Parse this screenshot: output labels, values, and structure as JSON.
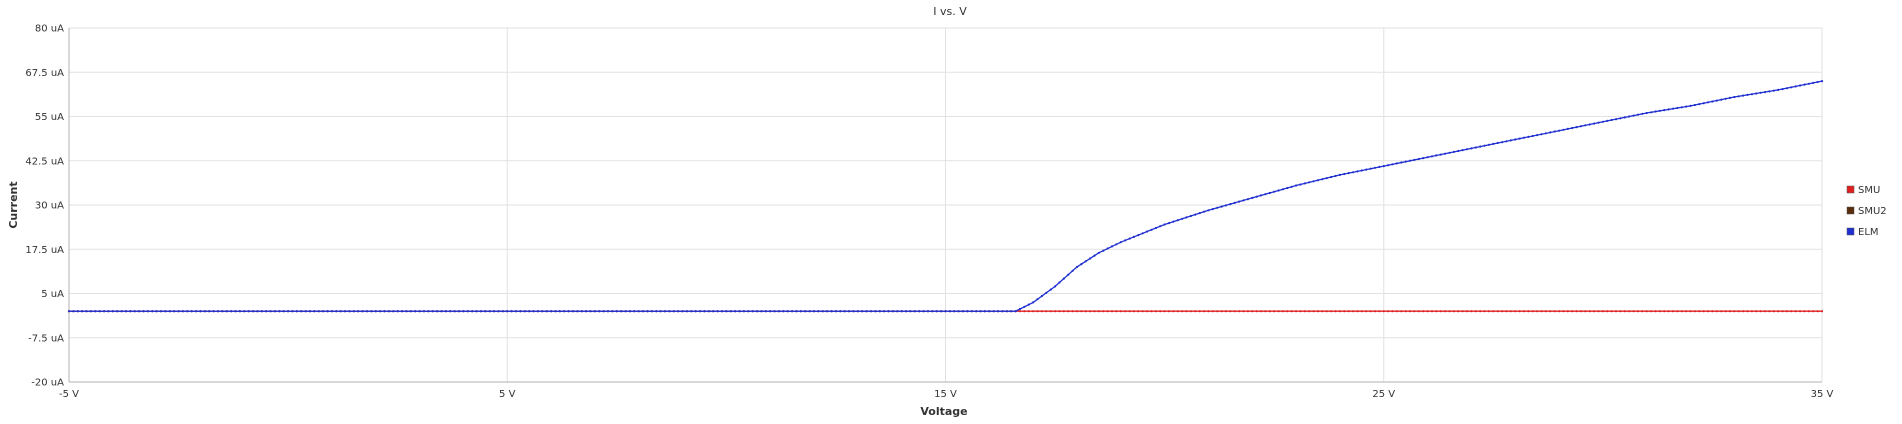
{
  "chart_data": {
    "type": "line",
    "title": "I vs. V",
    "xlabel": "Voltage",
    "ylabel": "Current",
    "xlim": [
      -5,
      35
    ],
    "ylim": [
      -20,
      80
    ],
    "x_ticks": [
      -5,
      5,
      15,
      25,
      35
    ],
    "x_tick_labels": [
      "-5 V",
      "5 V",
      "15 V",
      "25 V",
      "35 V"
    ],
    "y_ticks": [
      -20,
      -7.5,
      5,
      17.5,
      30,
      42.5,
      55,
      67.5,
      80
    ],
    "y_tick_labels": [
      "-20 uA",
      "-7.5 uA",
      "5 uA",
      "17.5 uA",
      "30 uA",
      "42.5 uA",
      "55 uA",
      "67.5 uA",
      "80 uA"
    ],
    "grid": true,
    "legend_position": "right",
    "series": [
      {
        "name": "SMU",
        "color": "#e02020",
        "points": [
          [
            -5,
            0
          ],
          [
            16.6,
            0
          ],
          [
            20,
            0
          ],
          [
            25,
            0
          ],
          [
            30,
            0
          ],
          [
            35,
            0
          ]
        ]
      },
      {
        "name": "SMU2",
        "color": "#5a2d0c",
        "points": []
      },
      {
        "name": "ELM",
        "color": "#1f2fd0",
        "points": [
          [
            -5,
            0
          ],
          [
            16.6,
            0
          ],
          [
            17.0,
            2.5
          ],
          [
            17.5,
            7
          ],
          [
            18.0,
            12.5
          ],
          [
            18.5,
            16.5
          ],
          [
            19,
            19.5
          ],
          [
            20,
            24.5
          ],
          [
            21,
            28.5
          ],
          [
            22,
            32
          ],
          [
            23,
            35.5
          ],
          [
            24,
            38.5
          ],
          [
            25,
            41
          ],
          [
            26,
            43.5
          ],
          [
            27,
            46
          ],
          [
            28,
            48.5
          ],
          [
            29,
            51
          ],
          [
            30,
            53.5
          ],
          [
            31,
            56
          ],
          [
            32,
            58
          ],
          [
            33,
            60.5
          ],
          [
            34,
            62.5
          ],
          [
            35,
            65
          ]
        ]
      }
    ]
  }
}
